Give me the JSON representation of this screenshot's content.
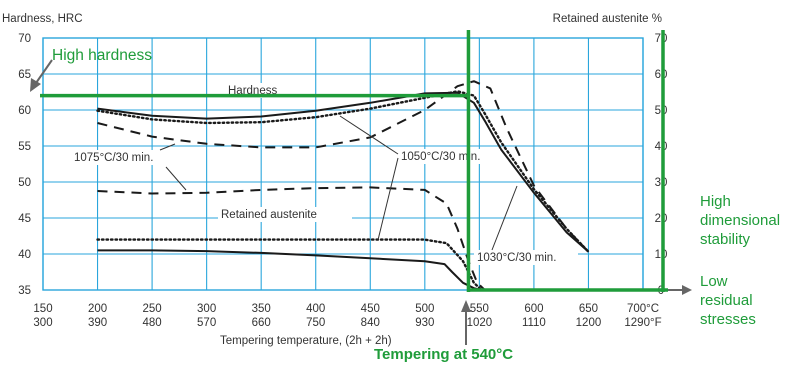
{
  "chart_data": {
    "type": "line",
    "left_axis_title": "Hardness, HRC",
    "right_axis_title": "Retained austenite %",
    "x_axis_title": "Tempering temperature, (2h + 2h)",
    "x_ticks_c": [
      "150",
      "200",
      "250",
      "300",
      "350",
      "400",
      "450",
      "500",
      "550",
      "600",
      "650",
      "700°C"
    ],
    "x_ticks_f": [
      "300",
      "390",
      "480",
      "570",
      "660",
      "750",
      "840",
      "930",
      "1020",
      "1110",
      "1200",
      "1290°F"
    ],
    "x_values_c": [
      150,
      200,
      250,
      300,
      350,
      400,
      450,
      500,
      550,
      600,
      650,
      700
    ],
    "y_left_ticks": [
      35,
      40,
      45,
      50,
      55,
      60,
      65,
      70
    ],
    "y_right_ticks": [
      "0",
      "10",
      "20",
      "30",
      "40",
      "50",
      "60",
      "70"
    ],
    "ylim_left": [
      35,
      70
    ],
    "ylim_right": [
      0,
      70
    ],
    "xlim": [
      150,
      700
    ],
    "grid": true,
    "colors": {
      "grid": "#2aa6dc",
      "green": "#1f9c3a",
      "curve": "#1a1a1a",
      "arrow": "#666666"
    },
    "curve_labels": {
      "hardness": "Hardness",
      "retained": "Retained austenite",
      "c1075": "1075°C/30 min.",
      "c1050": "1050°C/30 min.",
      "c1030": "1030°C/30 min."
    },
    "series": [
      {
        "name": "1050°C/30 min.",
        "quantity": "hardness",
        "style": "solid",
        "x": [
          200,
          250,
          300,
          350,
          400,
          450,
          500,
          530,
          545,
          555,
          570,
          600,
          630,
          650
        ],
        "y": [
          60.2,
          59.2,
          58.8,
          59.1,
          59.9,
          61.0,
          62.3,
          62.4,
          61.0,
          58.5,
          54.5,
          48.5,
          43.0,
          40.3
        ]
      },
      {
        "name": "1030°C/30 min.",
        "quantity": "hardness",
        "style": "dotted",
        "x": [
          200,
          250,
          300,
          350,
          400,
          450,
          500,
          530,
          545,
          555,
          570,
          600,
          630,
          650
        ],
        "y": [
          59.9,
          58.7,
          58.2,
          58.3,
          59.0,
          60.2,
          61.7,
          62.6,
          62.0,
          59.5,
          55.5,
          49.0,
          43.5,
          40.3
        ]
      },
      {
        "name": "1075°C/30 min.",
        "quantity": "hardness",
        "style": "dashed",
        "x": [
          200,
          250,
          300,
          350,
          400,
          450,
          500,
          530,
          545,
          560,
          575,
          600,
          630,
          650
        ],
        "y": [
          58.2,
          56.3,
          55.3,
          54.8,
          54.8,
          56.2,
          60.0,
          63.3,
          64.0,
          63.0,
          57.5,
          49.5,
          43.5,
          40.3
        ]
      },
      {
        "name": "1075°C/30 min.",
        "quantity": "retained_austenite",
        "style": "dashed",
        "x": [
          200,
          250,
          300,
          350,
          400,
          450,
          500,
          520,
          530,
          540,
          548,
          555
        ],
        "y": [
          27.5,
          26.8,
          27.0,
          27.8,
          28.3,
          28.5,
          27.8,
          24.0,
          17.0,
          8.0,
          2.0,
          0
        ]
      },
      {
        "name": "1030°C/30 min.",
        "quantity": "retained_austenite",
        "style": "dotted",
        "x": [
          200,
          250,
          300,
          350,
          400,
          450,
          500,
          520,
          535,
          545,
          552
        ],
        "y": [
          14.0,
          14.0,
          14.0,
          14.0,
          14.0,
          14.0,
          14.0,
          13.0,
          8.0,
          2.0,
          0
        ]
      },
      {
        "name": "1050°C/30 min.",
        "quantity": "retained_austenite",
        "style": "solid",
        "x": [
          200,
          250,
          300,
          350,
          400,
          450,
          500,
          518,
          525,
          535,
          545,
          552
        ],
        "y": [
          11.0,
          11.0,
          10.8,
          10.3,
          9.6,
          8.8,
          8.0,
          7.2,
          5.0,
          2.0,
          0.5,
          0
        ]
      }
    ],
    "annotations": {
      "high_hardness": "High hardness",
      "high_dimensional_stability": "High dimensional stability",
      "low_residual_stresses": "Low residual stresses",
      "tempering_at": "Tempering at 540°C",
      "hardness_reference": 62,
      "tempering_temperature_c": 540
    }
  }
}
